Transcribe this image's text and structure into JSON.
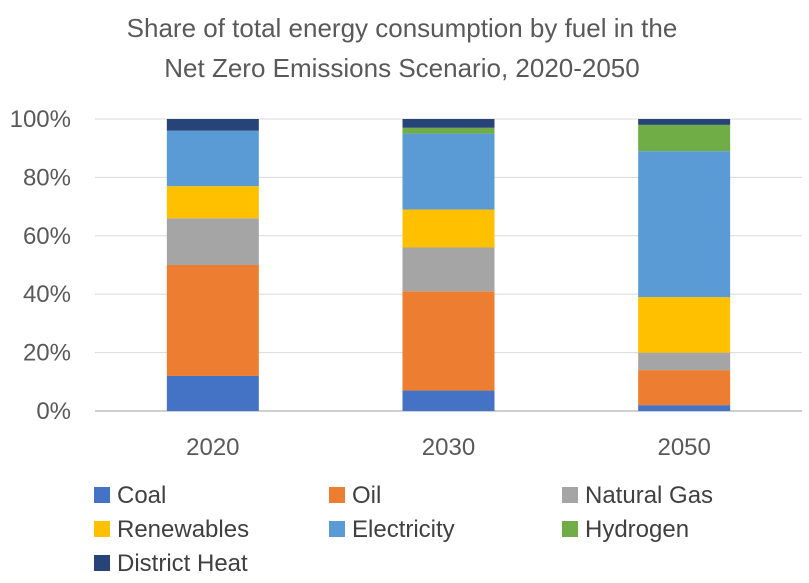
{
  "chart_data": {
    "type": "bar",
    "stacked": true,
    "title_lines": [
      "Share of total energy consumption by fuel in the",
      "Net Zero Emissions Scenario, 2020-2050"
    ],
    "xlabel": "",
    "ylabel": "",
    "categories": [
      "2020",
      "2030",
      "2050"
    ],
    "y_ticks": [
      "0%",
      "20%",
      "40%",
      "60%",
      "80%",
      "100%"
    ],
    "ylim": [
      0,
      100
    ],
    "grid": true,
    "legend_position": "bottom",
    "series": [
      {
        "name": "Coal",
        "color": "#4472c4",
        "values": [
          12,
          7,
          2
        ]
      },
      {
        "name": "Oil",
        "color": "#ed7d31",
        "values": [
          38,
          34,
          12
        ]
      },
      {
        "name": "Natural Gas",
        "color": "#a5a5a5",
        "values": [
          16,
          15,
          6
        ]
      },
      {
        "name": "Renewables",
        "color": "#ffc000",
        "values": [
          11,
          13,
          19
        ]
      },
      {
        "name": "Electricity",
        "color": "#5b9bd5",
        "values": [
          19,
          26,
          50
        ]
      },
      {
        "name": "Hydrogen",
        "color": "#70ad47",
        "values": [
          0,
          2,
          9
        ]
      },
      {
        "name": "District Heat",
        "color": "#264478",
        "values": [
          4,
          3,
          2
        ]
      }
    ]
  }
}
